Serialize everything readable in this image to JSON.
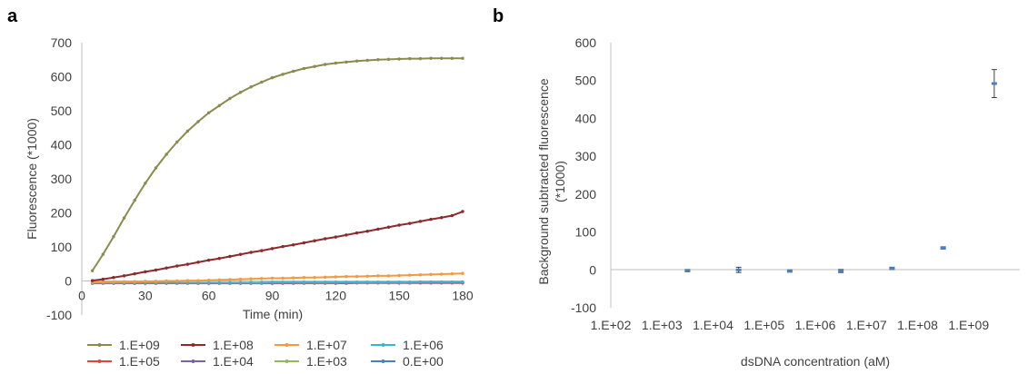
{
  "chart_data": [
    {
      "panel": "a",
      "type": "line",
      "xlabel": "Time (min)",
      "ylabel": "Fluorescence (*1000)",
      "xlim": [
        0,
        180
      ],
      "ylim": [
        -100,
        700
      ],
      "x_ticks": [
        0,
        30,
        60,
        90,
        120,
        150,
        180
      ],
      "y_ticks": [
        -100,
        0,
        100,
        200,
        300,
        400,
        500,
        600,
        700
      ],
      "grid": false,
      "legend_position": "bottom",
      "x": [
        5,
        10,
        15,
        20,
        25,
        30,
        35,
        40,
        45,
        50,
        55,
        60,
        65,
        70,
        75,
        80,
        85,
        90,
        95,
        100,
        105,
        110,
        115,
        120,
        125,
        130,
        135,
        140,
        145,
        150,
        155,
        160,
        165,
        170,
        175,
        180
      ],
      "series": [
        {
          "name": "1.E+09",
          "color": "#8C8B4E",
          "values": [
            30,
            78,
            130,
            185,
            237,
            287,
            332,
            372,
            408,
            440,
            468,
            494,
            515,
            536,
            554,
            570,
            584,
            597,
            607,
            616,
            624,
            630,
            636,
            640,
            643,
            646,
            648,
            650,
            651,
            652,
            653,
            653,
            654,
            654,
            654,
            654
          ]
        },
        {
          "name": "1.E+08",
          "color": "#8B2B2B",
          "values": [
            1,
            5,
            10,
            15,
            21,
            27,
            32,
            38,
            44,
            49,
            55,
            61,
            66,
            72,
            78,
            84,
            89,
            95,
            101,
            106,
            112,
            118,
            124,
            129,
            135,
            141,
            146,
            152,
            158,
            164,
            169,
            175,
            181,
            186,
            192,
            204
          ]
        },
        {
          "name": "1.E+07",
          "color": "#F59A3C",
          "values": [
            -4,
            -3,
            -3,
            -2,
            -2,
            -1,
            -1,
            0,
            0,
            1,
            1,
            2,
            3,
            4,
            5,
            6,
            7,
            8,
            8,
            9,
            10,
            10,
            11,
            12,
            13,
            13,
            14,
            15,
            15,
            16,
            17,
            18,
            19,
            20,
            21,
            22
          ]
        },
        {
          "name": "1.E+06",
          "color": "#3AB2D3",
          "values": [
            -5,
            -5,
            -5,
            -5,
            -5,
            -5,
            -5,
            -5,
            -5,
            -5,
            -5,
            -5,
            -5,
            -5,
            -5,
            -5,
            -5,
            -4,
            -4,
            -4,
            -4,
            -4,
            -4,
            -4,
            -4,
            -4,
            -4,
            -4,
            -4,
            -4,
            -4,
            -3,
            -3,
            -3,
            -3,
            -3
          ]
        },
        {
          "name": "1.E+05",
          "color": "#E0443A",
          "values": [
            -6,
            -6,
            -6,
            -6,
            -6,
            -6,
            -6,
            -6,
            -6,
            -6,
            -6,
            -6,
            -6,
            -6,
            -6,
            -6,
            -5,
            -5,
            -5,
            -5,
            -5,
            -5,
            -5,
            -5,
            -5,
            -5,
            -5,
            -5,
            -5,
            -5,
            -5,
            -5,
            -5,
            -5,
            -5,
            -5
          ]
        },
        {
          "name": "1.E+04",
          "color": "#7B62A6",
          "values": [
            -6,
            -6,
            -6,
            -6,
            -6,
            -6,
            -6,
            -6,
            -6,
            -6,
            -6,
            -6,
            -6,
            -6,
            -6,
            -6,
            -6,
            -6,
            -6,
            -6,
            -5,
            -5,
            -5,
            -5,
            -5,
            -5,
            -5,
            -5,
            -5,
            -5,
            -5,
            -5,
            -5,
            -5,
            -5,
            -5
          ]
        },
        {
          "name": "1.E+03",
          "color": "#93B95A",
          "values": [
            -6,
            -6,
            -6,
            -6,
            -6,
            -6,
            -6,
            -6,
            -6,
            -6,
            -6,
            -6,
            -6,
            -6,
            -6,
            -6,
            -6,
            -6,
            -6,
            -6,
            -6,
            -6,
            -6,
            -6,
            -5,
            -5,
            -5,
            -5,
            -5,
            -5,
            -5,
            -5,
            -5,
            -5,
            -5,
            -5
          ]
        },
        {
          "name": "0.E+00",
          "color": "#4A7FC0",
          "values": [
            -7,
            -7,
            -7,
            -7,
            -7,
            -7,
            -7,
            -7,
            -7,
            -7,
            -7,
            -7,
            -7,
            -7,
            -7,
            -7,
            -7,
            -7,
            -7,
            -7,
            -7,
            -7,
            -7,
            -7,
            -7,
            -6,
            -6,
            -6,
            -6,
            -6,
            -6,
            -6,
            -6,
            -6,
            -6,
            -6
          ]
        }
      ]
    },
    {
      "panel": "b",
      "type": "scatter",
      "xlabel": "dsDNA concentration (aM)",
      "ylabel": "Background subtracted fluorescence (*1000)",
      "ylim": [
        -100,
        600
      ],
      "y_ticks": [
        -100,
        0,
        100,
        200,
        300,
        400,
        500,
        600
      ],
      "categories": [
        "1.E+02",
        "1.E+03",
        "1.E+04",
        "1.E+05",
        "1.E+06",
        "1.E+07",
        "1.E+08",
        "1.E+09"
      ],
      "grid": false,
      "marker_color": "#4A7FC0",
      "points": [
        {
          "x": "1.E+03",
          "y": -2,
          "err": 3
        },
        {
          "x": "1.E+04",
          "y": 0,
          "err": 7
        },
        {
          "x": "1.E+05",
          "y": -3,
          "err": 3
        },
        {
          "x": "1.E+06",
          "y": -3,
          "err": 4
        },
        {
          "x": "1.E+07",
          "y": 4,
          "err": 3
        },
        {
          "x": "1.E+08",
          "y": 58,
          "err": 3
        },
        {
          "x": "1.E+09",
          "y": 492,
          "err": 37
        }
      ]
    }
  ]
}
